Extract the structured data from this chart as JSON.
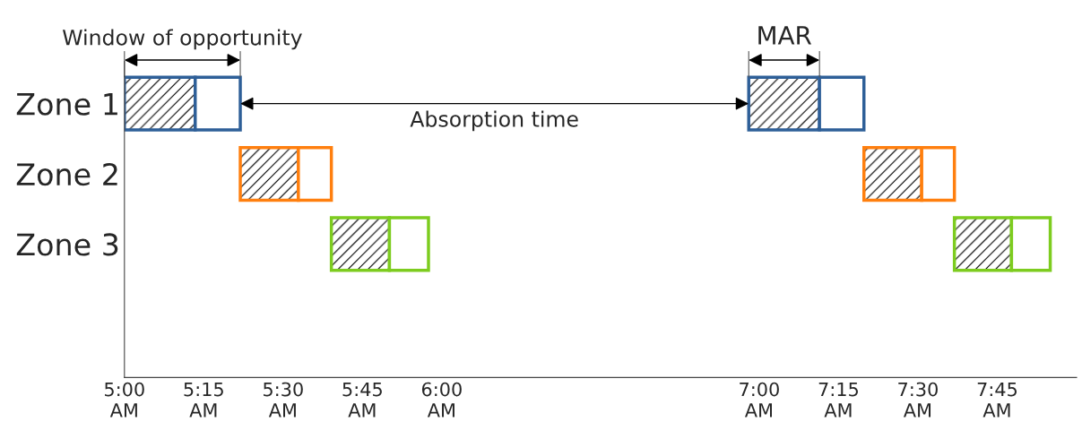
{
  "chart_data": {
    "type": "bar",
    "orientation": "horizontal",
    "categories": [
      "Zone 1",
      "Zone 2",
      "Zone 3"
    ],
    "series": [
      {
        "base": [
          5.0,
          5.365,
          5.652
        ],
        "values": [
          0.223,
          0.183,
          0.183
        ],
        "colors": [
          "#2e5f98",
          "#ff7f0e",
          "#7dcc1f"
        ]
      },
      {
        "base": [
          5.223,
          5.548,
          5.835
        ],
        "values": [
          0.142,
          0.104,
          0.123
        ],
        "colors": [
          "#2e5f98",
          "#ff7f0e",
          "#7dcc1f"
        ]
      },
      {
        "base": [
          6.967,
          7.33,
          7.615
        ],
        "values": [
          0.223,
          0.182,
          0.18
        ],
        "colors": [
          "#2e5f98",
          "#ff7f0e",
          "#7dcc1f"
        ]
      },
      {
        "base": [
          7.19,
          7.512,
          7.795
        ],
        "values": [
          0.14,
          0.103,
          0.122
        ],
        "colors": [
          "#2e5f98",
          "#ff7f0e",
          "#7dcc1f"
        ]
      }
    ],
    "xlim": [
      5.0,
      8.0
    ],
    "xticks": [
      {
        "value": 5.0,
        "label": "5:00\nAM"
      },
      {
        "value": 5.25,
        "label": "5:15\nAM"
      },
      {
        "value": 5.5,
        "label": "5:30\nAM"
      },
      {
        "value": 5.75,
        "label": "5:45\nAM"
      },
      {
        "value": 6.0,
        "label": "6:00\nAM"
      },
      {
        "value": 7.0,
        "label": "7:00\nAM"
      },
      {
        "value": 7.25,
        "label": "7:15\nAM"
      },
      {
        "value": 7.5,
        "label": "7:30\nAM"
      },
      {
        "value": 7.75,
        "label": "7:45\nAM"
      }
    ],
    "annotations": [
      "Window of opportunity",
      "Absorption time",
      "MAR"
    ],
    "grid": false,
    "legend": false
  }
}
